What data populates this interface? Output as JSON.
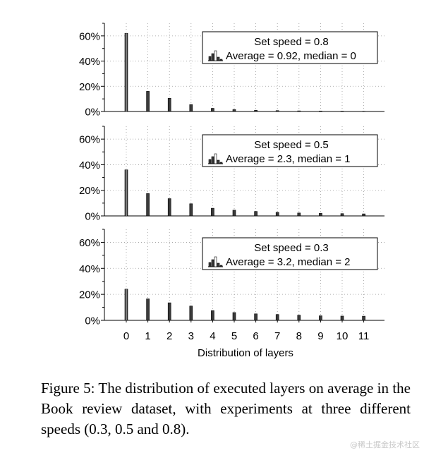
{
  "chart_data": [
    {
      "type": "bar",
      "categories": [
        "0",
        "1",
        "2",
        "3",
        "4",
        "5",
        "6",
        "7",
        "8",
        "9",
        "10",
        "11"
      ],
      "values": [
        62,
        16,
        10.5,
        5.5,
        2.5,
        1.5,
        1,
        0.7,
        0.5,
        0.4,
        0.3,
        0.2
      ],
      "ylim": [
        0,
        70
      ],
      "yticks": [
        0,
        20,
        40,
        60
      ],
      "ytick_labels": [
        "0%",
        "20%",
        "40%",
        "60%"
      ],
      "grid": true,
      "legend": {
        "placement": "top-right",
        "line1": "Set speed = 0.8",
        "line2": "Average = 0.92, median = 0"
      }
    },
    {
      "type": "bar",
      "categories": [
        "0",
        "1",
        "2",
        "3",
        "4",
        "5",
        "6",
        "7",
        "8",
        "9",
        "10",
        "11"
      ],
      "values": [
        36,
        17.5,
        13.5,
        9.5,
        6,
        4.5,
        3.5,
        2.8,
        2.3,
        2,
        1.8,
        1.6
      ],
      "ylim": [
        0,
        70
      ],
      "yticks": [
        0,
        20,
        40,
        60
      ],
      "ytick_labels": [
        "0%",
        "20%",
        "40%",
        "60%"
      ],
      "grid": true,
      "legend": {
        "placement": "top-right",
        "line1": "Set speed = 0.5",
        "line2": "Average = 2.3, median = 1"
      }
    },
    {
      "type": "bar",
      "categories": [
        "0",
        "1",
        "2",
        "3",
        "4",
        "5",
        "6",
        "7",
        "8",
        "9",
        "10",
        "11"
      ],
      "values": [
        24,
        16.5,
        13.5,
        11,
        7.5,
        6,
        5,
        4.5,
        4,
        3.5,
        3.3,
        3.2
      ],
      "ylim": [
        0,
        70
      ],
      "yticks": [
        0,
        20,
        40,
        60
      ],
      "ytick_labels": [
        "0%",
        "20%",
        "40%",
        "60%"
      ],
      "grid": true,
      "legend": {
        "placement": "top-right",
        "line1": "Set speed = 0.3",
        "line2": "Average = 3.2, median = 2"
      }
    }
  ],
  "xlabel": "Distribution of layers",
  "caption": "Figure 5: The distribution of executed layers on average in the Book review dataset, with experiments at three different speeds (0.3, 0.5 and 0.8).",
  "watermark": "@稀土掘金技术社区"
}
